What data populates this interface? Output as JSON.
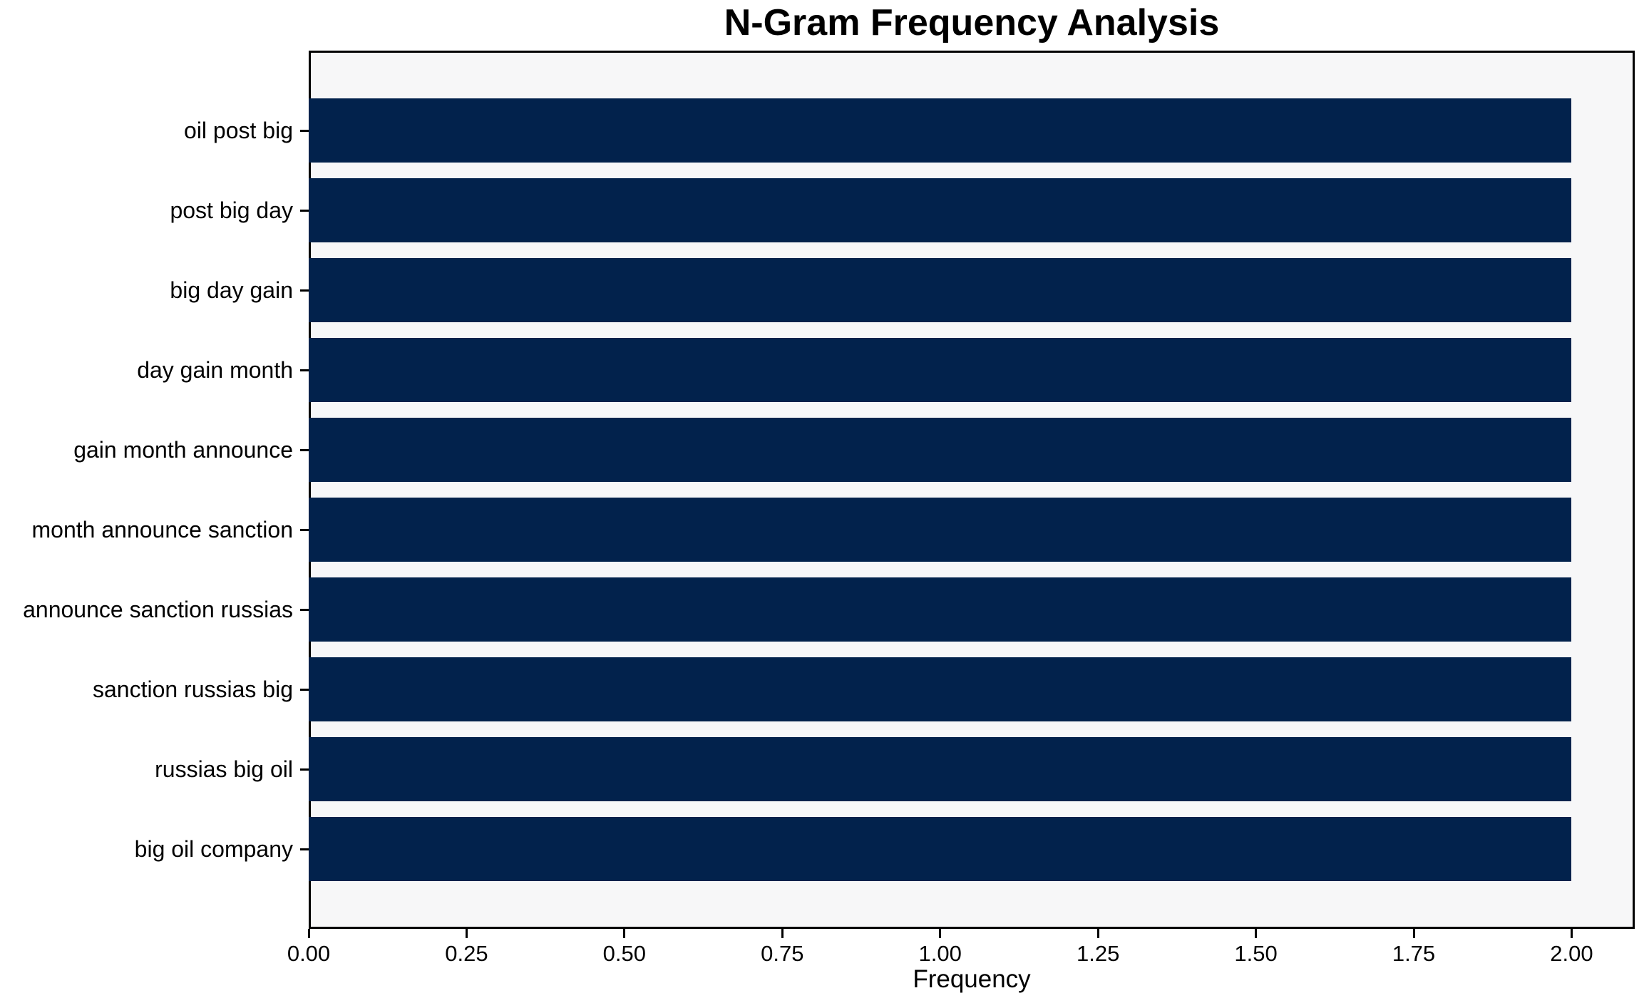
{
  "chart_data": {
    "type": "bar",
    "orientation": "horizontal",
    "title": "N-Gram Frequency Analysis",
    "xlabel": "Frequency",
    "categories": [
      "oil post big",
      "post big day",
      "big day gain",
      "day gain month",
      "gain month announce",
      "month announce sanction",
      "announce sanction russias",
      "sanction russias big",
      "russias big oil",
      "big oil company"
    ],
    "values": [
      2,
      2,
      2,
      2,
      2,
      2,
      2,
      2,
      2,
      2
    ],
    "xlim": [
      0,
      2.1
    ],
    "x_ticks": [
      {
        "label": "0.00",
        "value": 0.0
      },
      {
        "label": "0.25",
        "value": 0.25
      },
      {
        "label": "0.50",
        "value": 0.5
      },
      {
        "label": "0.75",
        "value": 0.75
      },
      {
        "label": "1.00",
        "value": 1.0
      },
      {
        "label": "1.25",
        "value": 1.25
      },
      {
        "label": "1.50",
        "value": 1.5
      },
      {
        "label": "1.75",
        "value": 1.75
      },
      {
        "label": "2.00",
        "value": 2.0
      }
    ],
    "grid": false,
    "legend": null,
    "colors": {
      "bar": "#02224c",
      "plot_background": "#f7f7f8",
      "figure_background": "#ffffff",
      "spine": "#000000",
      "text": "#000000"
    }
  }
}
